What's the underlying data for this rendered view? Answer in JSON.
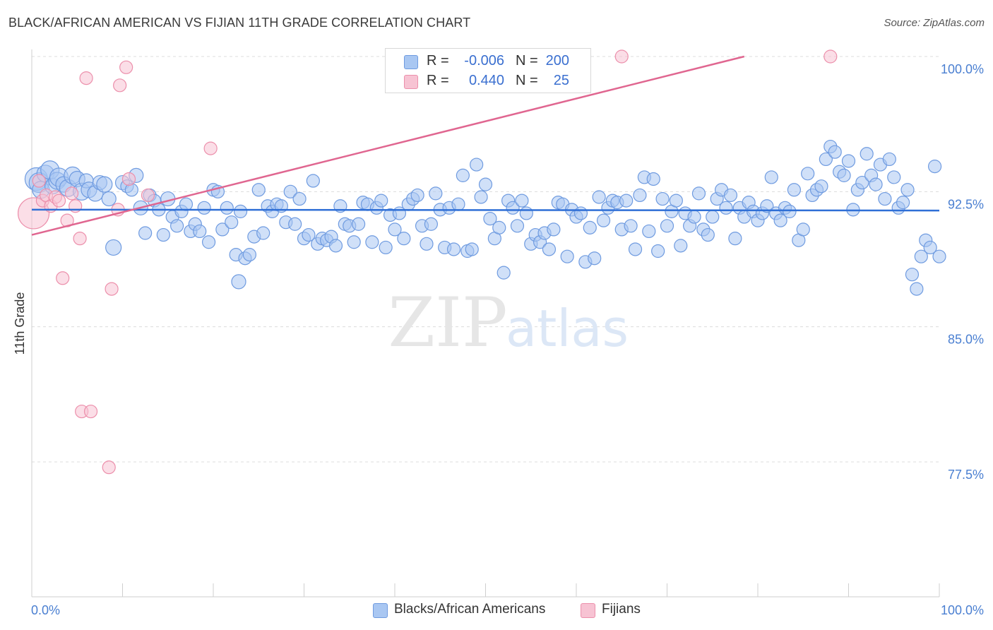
{
  "title": "BLACK/AFRICAN AMERICAN VS FIJIAN 11TH GRADE CORRELATION CHART",
  "source": "Source: ZipAtlas.com",
  "watermark": {
    "zip": "ZIP",
    "atlas": "atlas"
  },
  "colors": {
    "blue_fill": "#a9c7f2",
    "blue_stroke": "#6f9be0",
    "blue_line": "#2f6fd6",
    "pink_fill": "#f7c3d3",
    "pink_stroke": "#ec8fab",
    "pink_line": "#e06690",
    "tick_text": "#4a7fd1",
    "grid": "#dcdcdc"
  },
  "legend": {
    "rows": [
      {
        "r_label": "R =",
        "r_value": "-0.006",
        "n_label": "N =",
        "n_value": "200",
        "series": "blue"
      },
      {
        "r_label": "R =",
        "r_value": "0.440",
        "n_label": "N =",
        "n_value": "25",
        "series": "pink"
      }
    ]
  },
  "bottom_legend": [
    {
      "label": "Blacks/African Americans",
      "series": "blue"
    },
    {
      "label": "Fijians",
      "series": "pink"
    }
  ],
  "chart_data": {
    "type": "scatter",
    "title": "BLACK/AFRICAN AMERICAN VS FIJIAN 11TH GRADE CORRELATION CHART",
    "xlabel": "",
    "ylabel": "11th Grade",
    "xlim": [
      0,
      100
    ],
    "ylim": [
      70.5,
      101
    ],
    "x_tick_labels": [
      {
        "value": 0,
        "label": "0.0%"
      },
      {
        "value": 100,
        "label": "100.0%"
      }
    ],
    "y_ticks": [
      {
        "value": 100,
        "label": "100.0%"
      },
      {
        "value": 92.5,
        "label": "92.5%"
      },
      {
        "value": 85,
        "label": "85.0%"
      },
      {
        "value": 77.5,
        "label": "77.5%"
      }
    ],
    "x_minor_ticks": [
      0,
      10,
      20,
      30,
      40,
      50,
      60,
      70,
      80,
      90,
      100
    ],
    "grid": true,
    "series": [
      {
        "name": "Blacks/African Americans",
        "color": "blue",
        "trend": {
          "x": [
            0,
            100
          ],
          "y": [
            91.5,
            91.45
          ]
        },
        "points": [
          [
            0.5,
            93.2,
            16
          ],
          [
            0.8,
            93.0,
            14
          ],
          [
            1.0,
            92.6,
            12
          ],
          [
            1.5,
            93.5,
            12
          ],
          [
            2.0,
            93.7,
            13
          ],
          [
            2.3,
            92.8,
            11
          ],
          [
            2.8,
            93.1,
            12
          ],
          [
            3.0,
            93.3,
            13
          ],
          [
            3.5,
            92.9,
            11
          ],
          [
            4.0,
            92.7,
            12
          ],
          [
            4.5,
            93.4,
            12
          ],
          [
            5.0,
            93.2,
            11
          ],
          [
            5.5,
            92.5,
            12
          ],
          [
            6.0,
            93.1,
            10
          ],
          [
            6.3,
            92.6,
            11
          ],
          [
            7.0,
            92.4,
            11
          ],
          [
            7.5,
            93.0,
            10
          ],
          [
            8.0,
            92.9,
            11
          ],
          [
            8.5,
            92.1,
            10
          ],
          [
            9.0,
            89.4,
            11
          ],
          [
            10.0,
            93.0,
            10
          ],
          [
            10.5,
            92.8,
            9
          ],
          [
            11.0,
            92.6,
            9
          ],
          [
            11.5,
            93.4,
            10
          ],
          [
            12.0,
            91.6,
            10
          ],
          [
            12.5,
            90.2,
            9
          ],
          [
            13.0,
            92.3,
            9
          ],
          [
            13.5,
            92.0,
            9
          ],
          [
            14.0,
            91.5,
            9
          ],
          [
            14.5,
            90.1,
            9
          ],
          [
            15.0,
            92.1,
            10
          ],
          [
            15.5,
            91.1,
            9
          ],
          [
            16.0,
            90.6,
            9
          ],
          [
            16.5,
            91.4,
            9
          ],
          [
            17.0,
            91.8,
            9
          ],
          [
            17.5,
            90.3,
            9
          ],
          [
            18.0,
            90.7,
            9
          ],
          [
            18.5,
            90.3,
            9
          ],
          [
            19.0,
            91.6,
            9
          ],
          [
            19.5,
            89.7,
            9
          ],
          [
            20.0,
            92.6,
            9
          ],
          [
            20.5,
            92.5,
            9
          ],
          [
            21.0,
            90.4,
            9
          ],
          [
            21.5,
            91.6,
            9
          ],
          [
            22.0,
            90.8,
            9
          ],
          [
            22.5,
            89.0,
            9
          ],
          [
            22.8,
            87.5,
            10
          ],
          [
            23.0,
            91.4,
            9
          ],
          [
            23.5,
            88.8,
            9
          ],
          [
            24.0,
            89.0,
            9
          ],
          [
            24.5,
            90.0,
            9
          ],
          [
            25.0,
            92.6,
            9
          ],
          [
            25.5,
            90.2,
            9
          ],
          [
            26.0,
            91.7,
            9
          ],
          [
            26.5,
            91.4,
            9
          ],
          [
            27.0,
            91.8,
            9
          ],
          [
            27.5,
            91.7,
            9
          ],
          [
            28.0,
            90.8,
            9
          ],
          [
            28.5,
            92.5,
            9
          ],
          [
            29.0,
            90.7,
            9
          ],
          [
            29.5,
            92.1,
            9
          ],
          [
            30.0,
            89.9,
            9
          ],
          [
            30.5,
            90.1,
            9
          ],
          [
            31.0,
            93.1,
            9
          ],
          [
            31.5,
            89.6,
            9
          ],
          [
            32.0,
            89.9,
            9
          ],
          [
            32.5,
            89.8,
            9
          ],
          [
            33.0,
            90.0,
            9
          ],
          [
            33.5,
            89.5,
            9
          ],
          [
            34.0,
            91.7,
            9
          ],
          [
            34.5,
            90.7,
            9
          ],
          [
            35.0,
            90.6,
            9
          ],
          [
            35.5,
            89.7,
            9
          ],
          [
            36.0,
            90.7,
            9
          ],
          [
            36.5,
            91.9,
            9
          ],
          [
            37.0,
            91.8,
            9
          ],
          [
            37.5,
            89.7,
            9
          ],
          [
            38.0,
            91.6,
            9
          ],
          [
            38.5,
            92.0,
            9
          ],
          [
            39.0,
            89.4,
            9
          ],
          [
            39.5,
            91.2,
            9
          ],
          [
            40.0,
            90.4,
            9
          ],
          [
            40.5,
            91.3,
            9
          ],
          [
            41.0,
            89.9,
            9
          ],
          [
            41.5,
            91.8,
            9
          ],
          [
            42.0,
            92.1,
            9
          ],
          [
            42.5,
            92.3,
            9
          ],
          [
            43.0,
            90.6,
            9
          ],
          [
            43.5,
            89.6,
            9
          ],
          [
            44.0,
            90.7,
            9
          ],
          [
            44.5,
            92.4,
            9
          ],
          [
            45.0,
            91.5,
            9
          ],
          [
            45.5,
            89.4,
            9
          ],
          [
            46.0,
            91.6,
            9
          ],
          [
            46.5,
            89.3,
            9
          ],
          [
            47.0,
            91.8,
            9
          ],
          [
            47.5,
            93.4,
            9
          ],
          [
            48.0,
            89.2,
            9
          ],
          [
            48.5,
            89.3,
            9
          ],
          [
            49.0,
            94.0,
            9
          ],
          [
            49.5,
            92.2,
            9
          ],
          [
            50.0,
            92.9,
            9
          ],
          [
            50.5,
            91.0,
            9
          ],
          [
            51.0,
            89.9,
            9
          ],
          [
            51.5,
            90.5,
            9
          ],
          [
            52.0,
            88.0,
            9
          ],
          [
            52.5,
            92.0,
            9
          ],
          [
            53.0,
            91.6,
            9
          ],
          [
            53.5,
            90.6,
            9
          ],
          [
            54.0,
            92.0,
            9
          ],
          [
            54.5,
            91.3,
            9
          ],
          [
            55.0,
            89.6,
            9
          ],
          [
            55.5,
            90.1,
            9
          ],
          [
            56.0,
            89.7,
            9
          ],
          [
            56.5,
            90.2,
            9
          ],
          [
            57.0,
            89.3,
            9
          ],
          [
            57.5,
            90.4,
            9
          ],
          [
            58.0,
            91.9,
            9
          ],
          [
            58.5,
            91.8,
            9
          ],
          [
            59.0,
            88.9,
            9
          ],
          [
            59.5,
            91.5,
            9
          ],
          [
            60.0,
            91.1,
            9
          ],
          [
            60.5,
            91.3,
            9
          ],
          [
            61.0,
            88.6,
            9
          ],
          [
            61.5,
            90.5,
            9
          ],
          [
            62.0,
            88.8,
            9
          ],
          [
            62.5,
            92.2,
            9
          ],
          [
            63.0,
            90.9,
            9
          ],
          [
            63.5,
            91.6,
            9
          ],
          [
            64.0,
            92.0,
            9
          ],
          [
            64.5,
            91.9,
            9
          ],
          [
            65.0,
            90.4,
            9
          ],
          [
            65.5,
            92.0,
            9
          ],
          [
            66.0,
            90.6,
            9
          ],
          [
            66.5,
            89.3,
            9
          ],
          [
            67.0,
            92.3,
            9
          ],
          [
            67.5,
            93.3,
            9
          ],
          [
            68.0,
            90.3,
            9
          ],
          [
            68.5,
            93.2,
            9
          ],
          [
            69.0,
            89.2,
            9
          ],
          [
            69.5,
            92.1,
            9
          ],
          [
            70.0,
            90.6,
            9
          ],
          [
            70.5,
            91.4,
            9
          ],
          [
            71.0,
            92.0,
            9
          ],
          [
            71.5,
            89.5,
            9
          ],
          [
            72.0,
            91.3,
            9
          ],
          [
            72.5,
            90.6,
            9
          ],
          [
            73.0,
            91.1,
            9
          ],
          [
            73.5,
            92.4,
            9
          ],
          [
            74.0,
            90.4,
            9
          ],
          [
            74.5,
            90.1,
            9
          ],
          [
            75.0,
            91.1,
            9
          ],
          [
            75.5,
            92.1,
            9
          ],
          [
            76.0,
            92.6,
            9
          ],
          [
            76.5,
            91.6,
            9
          ],
          [
            77.0,
            92.3,
            9
          ],
          [
            77.5,
            89.9,
            9
          ],
          [
            78.0,
            91.6,
            9
          ],
          [
            78.5,
            91.1,
            9
          ],
          [
            79.0,
            91.9,
            9
          ],
          [
            79.5,
            91.4,
            9
          ],
          [
            80.0,
            90.9,
            9
          ],
          [
            80.5,
            91.3,
            9
          ],
          [
            81.0,
            91.7,
            9
          ],
          [
            81.5,
            93.3,
            9
          ],
          [
            82.0,
            91.3,
            9
          ],
          [
            82.5,
            90.9,
            9
          ],
          [
            83.0,
            91.6,
            9
          ],
          [
            83.5,
            91.4,
            9
          ],
          [
            84.0,
            92.6,
            9
          ],
          [
            84.5,
            89.8,
            9
          ],
          [
            85.0,
            90.4,
            9
          ],
          [
            85.5,
            93.5,
            9
          ],
          [
            86.0,
            92.3,
            9
          ],
          [
            86.5,
            92.6,
            9
          ],
          [
            87.0,
            92.8,
            9
          ],
          [
            87.5,
            94.3,
            9
          ],
          [
            88.0,
            95.0,
            9
          ],
          [
            88.5,
            94.7,
            9
          ],
          [
            89.0,
            93.6,
            9
          ],
          [
            89.5,
            93.4,
            9
          ],
          [
            90.0,
            94.2,
            9
          ],
          [
            90.5,
            91.5,
            9
          ],
          [
            91.0,
            92.6,
            9
          ],
          [
            91.5,
            93.0,
            9
          ],
          [
            92.0,
            94.6,
            9
          ],
          [
            92.5,
            93.4,
            9
          ],
          [
            93.0,
            92.9,
            9
          ],
          [
            93.5,
            94.0,
            9
          ],
          [
            94.0,
            92.1,
            9
          ],
          [
            94.5,
            94.3,
            9
          ],
          [
            95.0,
            93.3,
            9
          ],
          [
            95.5,
            91.6,
            9
          ],
          [
            96.0,
            91.9,
            9
          ],
          [
            96.5,
            92.6,
            9
          ],
          [
            97.0,
            87.9,
            9
          ],
          [
            97.5,
            87.1,
            9
          ],
          [
            98.0,
            88.9,
            9
          ],
          [
            98.5,
            89.8,
            9
          ],
          [
            99.0,
            89.4,
            9
          ],
          [
            99.5,
            93.9,
            9
          ],
          [
            100.0,
            88.9,
            9
          ]
        ]
      },
      {
        "name": "Fijians",
        "color": "pink",
        "trend": {
          "x": [
            0,
            78.5
          ],
          "y": [
            90.1,
            100.0
          ]
        },
        "points": [
          [
            0.2,
            91.3,
            22
          ],
          [
            0.8,
            93.1,
            9
          ],
          [
            1.2,
            92.0,
            9
          ],
          [
            1.6,
            92.3,
            9
          ],
          [
            2.1,
            91.7,
            9
          ],
          [
            2.6,
            92.2,
            9
          ],
          [
            3.0,
            92.0,
            9
          ],
          [
            3.4,
            87.7,
            9
          ],
          [
            3.9,
            90.9,
            9
          ],
          [
            4.4,
            92.4,
            9
          ],
          [
            4.8,
            91.7,
            9
          ],
          [
            5.3,
            89.9,
            9
          ],
          [
            5.5,
            80.3,
            9
          ],
          [
            6.0,
            98.8,
            9
          ],
          [
            6.5,
            80.3,
            9
          ],
          [
            8.5,
            77.2,
            9
          ],
          [
            8.8,
            87.1,
            9
          ],
          [
            9.5,
            91.5,
            9
          ],
          [
            9.7,
            98.4,
            9
          ],
          [
            10.4,
            99.4,
            9
          ],
          [
            10.7,
            93.2,
            9
          ],
          [
            12.8,
            92.3,
            9
          ],
          [
            19.7,
            94.9,
            9
          ],
          [
            65.0,
            100.0,
            9
          ],
          [
            88.0,
            100.0,
            9
          ]
        ]
      }
    ]
  }
}
